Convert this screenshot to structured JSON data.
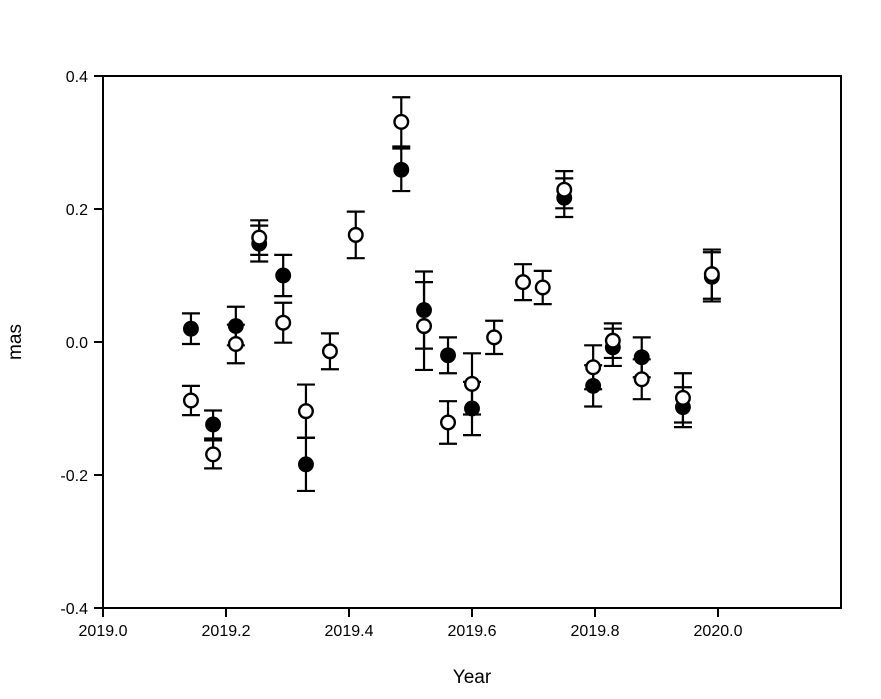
{
  "figure": {
    "background": "#ffffff",
    "foreground": "#000000",
    "xlabel": "Year",
    "ylabel": "mas"
  },
  "chart_data": {
    "type": "scatter",
    "title": "",
    "xlabel": "Year",
    "ylabel": "mas",
    "xlim": [
      2019.0,
      2020.2
    ],
    "ylim": [
      -0.4,
      0.4
    ],
    "grid": false,
    "frame": "box",
    "legend_position": "none",
    "x_ticks": [
      2019.0,
      2019.2,
      2019.4,
      2019.6,
      2019.8,
      2020.0
    ],
    "x_tick_labels": [
      "2019.0",
      "2019.2",
      "2019.4",
      "2019.6",
      "2019.8",
      "2020.0"
    ],
    "y_ticks": [
      -0.4,
      -0.2,
      0.0,
      0.2,
      0.4
    ],
    "y_tick_labels": [
      "-0.4",
      "-0.2",
      "0.0",
      "0.2",
      "0.4"
    ],
    "error_bars": true,
    "series": [
      {
        "name": "filled circles",
        "marker": "filled-circle",
        "color": "#000000",
        "fill": "#000000",
        "points": [
          {
            "x": 2019.143,
            "y": 0.02,
            "err": 0.023
          },
          {
            "x": 2019.179,
            "y": -0.124,
            "err": 0.021
          },
          {
            "x": 2019.216,
            "y": 0.024,
            "err": 0.029
          },
          {
            "x": 2019.254,
            "y": 0.148,
            "err": 0.027
          },
          {
            "x": 2019.293,
            "y": 0.1,
            "err": 0.031
          },
          {
            "x": 2019.33,
            "y": -0.184,
            "err": 0.04
          },
          {
            "x": 2019.485,
            "y": 0.259,
            "err": 0.032
          },
          {
            "x": 2019.522,
            "y": 0.048,
            "err": 0.058
          },
          {
            "x": 2019.561,
            "y": -0.02,
            "err": 0.027
          },
          {
            "x": 2019.6,
            "y": -0.1,
            "err": 0.04
          },
          {
            "x": 2019.75,
            "y": 0.217,
            "err": 0.029
          },
          {
            "x": 2019.797,
            "y": -0.066,
            "err": 0.031
          },
          {
            "x": 2019.829,
            "y": -0.008,
            "err": 0.028
          },
          {
            "x": 2019.876,
            "y": -0.023,
            "err": 0.03
          },
          {
            "x": 2019.943,
            "y": -0.098,
            "err": 0.03
          },
          {
            "x": 2019.99,
            "y": 0.098,
            "err": 0.037
          }
        ]
      },
      {
        "name": "open circles",
        "marker": "open-circle",
        "color": "#000000",
        "fill": "#ffffff",
        "points": [
          {
            "x": 2019.143,
            "y": -0.088,
            "err": 0.022
          },
          {
            "x": 2019.179,
            "y": -0.169,
            "err": 0.021
          },
          {
            "x": 2019.216,
            "y": -0.003,
            "err": 0.029
          },
          {
            "x": 2019.254,
            "y": 0.157,
            "err": 0.026
          },
          {
            "x": 2019.293,
            "y": 0.029,
            "err": 0.03
          },
          {
            "x": 2019.33,
            "y": -0.104,
            "err": 0.04
          },
          {
            "x": 2019.369,
            "y": -0.014,
            "err": 0.027
          },
          {
            "x": 2019.411,
            "y": 0.161,
            "err": 0.035
          },
          {
            "x": 2019.485,
            "y": 0.331,
            "err": 0.037
          },
          {
            "x": 2019.522,
            "y": 0.024,
            "err": 0.066
          },
          {
            "x": 2019.561,
            "y": -0.121,
            "err": 0.032
          },
          {
            "x": 2019.6,
            "y": -0.063,
            "err": 0.046
          },
          {
            "x": 2019.636,
            "y": 0.007,
            "err": 0.025
          },
          {
            "x": 2019.683,
            "y": 0.09,
            "err": 0.027
          },
          {
            "x": 2019.715,
            "y": 0.082,
            "err": 0.025
          },
          {
            "x": 2019.75,
            "y": 0.229,
            "err": 0.028
          },
          {
            "x": 2019.797,
            "y": -0.038,
            "err": 0.033
          },
          {
            "x": 2019.829,
            "y": 0.002,
            "err": 0.026
          },
          {
            "x": 2019.876,
            "y": -0.056,
            "err": 0.03
          },
          {
            "x": 2019.943,
            "y": -0.084,
            "err": 0.037
          },
          {
            "x": 2019.99,
            "y": 0.102,
            "err": 0.037
          }
        ]
      }
    ]
  }
}
